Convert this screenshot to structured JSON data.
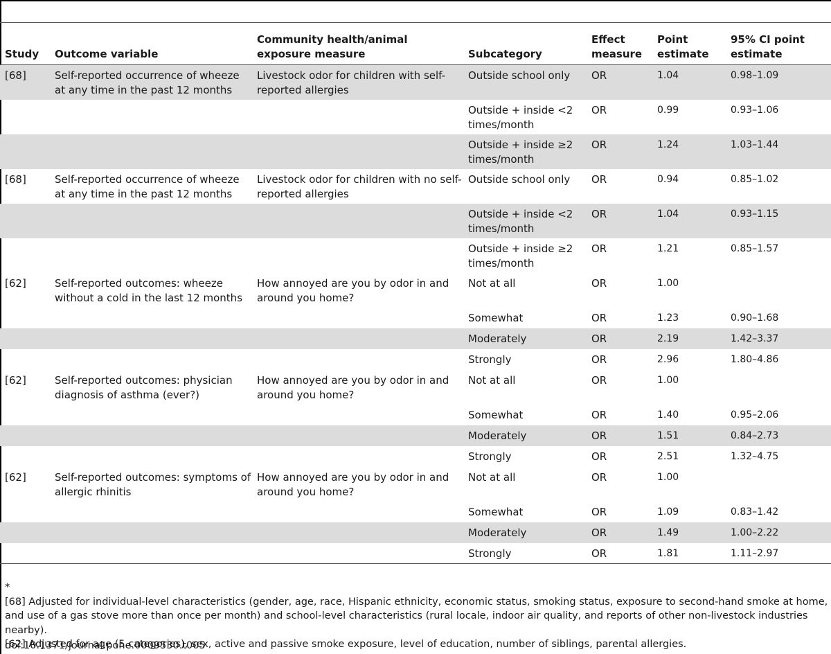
{
  "table": {
    "headers": [
      "Study",
      "Outcome variable",
      "Community health/animal exposure measure",
      "Subcategory",
      "Effect measure",
      "Point estimate",
      "95% CI point estimate"
    ],
    "rows": [
      {
        "study": "[68]",
        "outcome": "Self-reported occurrence of wheeze at any time in the past 12 months",
        "exposure": "Livestock odor for children with self-reported allergies",
        "subcategory": "Outside school only",
        "effect": "OR",
        "point": "1.04",
        "ci": "0.98–1.09"
      },
      {
        "study": "",
        "outcome": "",
        "exposure": "",
        "subcategory": "Outside + inside <2 times/month",
        "effect": "OR",
        "point": "0.99",
        "ci": "0.93–1.06"
      },
      {
        "study": "",
        "outcome": "",
        "exposure": "",
        "subcategory": "Outside + inside ≥2 times/month",
        "effect": "OR",
        "point": "1.24",
        "ci": "1.03–1.44"
      },
      {
        "study": "[68]",
        "outcome": "Self-reported occurrence of wheeze at any time in the past 12 months",
        "exposure": "Livestock odor for children with no self-reported allergies",
        "subcategory": "Outside school only",
        "effect": "OR",
        "point": "0.94",
        "ci": "0.85–1.02"
      },
      {
        "study": "",
        "outcome": "",
        "exposure": "",
        "subcategory": "Outside + inside <2 times/month",
        "effect": "OR",
        "point": "1.04",
        "ci": "0.93–1.15"
      },
      {
        "study": "",
        "outcome": "",
        "exposure": "",
        "subcategory": "Outside + inside ≥2 times/month",
        "effect": "OR",
        "point": "1.21",
        "ci": "0.85–1.57"
      },
      {
        "study": "[62]",
        "outcome": "Self-reported outcomes: wheeze without a cold in the last 12 months",
        "exposure": "How annoyed are you by odor in and around you home?",
        "subcategory": "Not at all",
        "effect": "OR",
        "point": "1.00",
        "ci": ""
      },
      {
        "study": "",
        "outcome": "",
        "exposure": "",
        "subcategory": "Somewhat",
        "effect": "OR",
        "point": "1.23",
        "ci": "0.90–1.68"
      },
      {
        "study": "",
        "outcome": "",
        "exposure": "",
        "subcategory": "Moderately",
        "effect": "OR",
        "point": "2.19",
        "ci": "1.42–3.37"
      },
      {
        "study": "",
        "outcome": "",
        "exposure": "",
        "subcategory": "Strongly",
        "effect": "OR",
        "point": "2.96",
        "ci": "1.80–4.86"
      },
      {
        "study": "[62]",
        "outcome": "Self-reported outcomes: physician diagnosis of asthma (ever?)",
        "exposure": "How annoyed are you by odor in and around you home?",
        "subcategory": "Not at all",
        "effect": "OR",
        "point": "1.00",
        "ci": ""
      },
      {
        "study": "",
        "outcome": "",
        "exposure": "",
        "subcategory": "Somewhat",
        "effect": "OR",
        "point": "1.40",
        "ci": "0.95–2.06"
      },
      {
        "study": "",
        "outcome": "",
        "exposure": "",
        "subcategory": "Moderately",
        "effect": "OR",
        "point": "1.51",
        "ci": "0.84–2.73"
      },
      {
        "study": "",
        "outcome": "",
        "exposure": "",
        "subcategory": "Strongly",
        "effect": "OR",
        "point": "2.51",
        "ci": "1.32–4.75"
      },
      {
        "study": "[62]",
        "outcome": "Self-reported outcomes: symptoms of allergic rhinitis",
        "exposure": "How annoyed are you by odor in and around you home?",
        "subcategory": "Not at all",
        "effect": "OR",
        "point": "1.00",
        "ci": ""
      },
      {
        "study": "",
        "outcome": "",
        "exposure": "",
        "subcategory": "Somewhat",
        "effect": "OR",
        "point": "1.09",
        "ci": "0.83–1.42"
      },
      {
        "study": "",
        "outcome": "",
        "exposure": "",
        "subcategory": "Moderately",
        "effect": "OR",
        "point": "1.49",
        "ci": "1.00–2.22"
      },
      {
        "study": "",
        "outcome": "",
        "exposure": "",
        "subcategory": "Strongly",
        "effect": "OR",
        "point": "1.81",
        "ci": "1.11–2.97"
      }
    ]
  },
  "footnotes": {
    "marker": "*",
    "note_68": "[68] Adjusted for individual-level characteristics (gender, age, race, Hispanic ethnicity, economic status, smoking status, exposure to second-hand smoke at home, and use of a gas stove more than once per month) and school-level characteristics (rural locale, indoor air quality, and reports of other non-livestock industries nearby).",
    "note_62": "[62] Adjusted for age (5 categories), sex, active and passive smoke exposure, level of education, number of siblings, parental allergies.",
    "doi": "doi:10.1371/journal.pone.0009530.t005"
  },
  "colors": {
    "shade": "#dcdcdc",
    "rule": "#555555"
  }
}
